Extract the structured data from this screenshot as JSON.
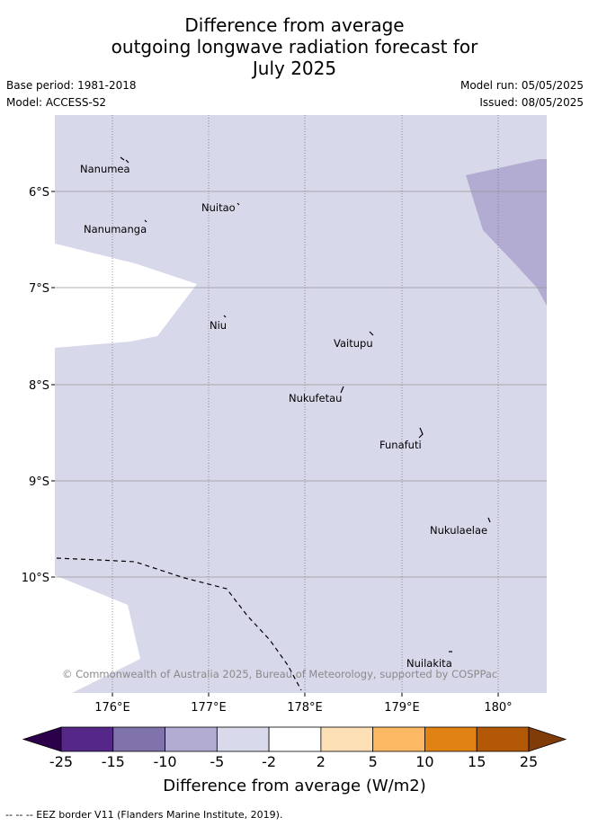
{
  "title_lines": [
    "Difference from average",
    "outgoing longwave radiation forecast for",
    "July 2025"
  ],
  "meta": {
    "base_period": "Base period: 1981-2018",
    "model": "Model: ACCESS-S2",
    "model_run": "Model run: 05/05/2025",
    "issued": "Issued: 08/05/2025"
  },
  "map": {
    "lat_labels": [
      "6°S",
      "7°S",
      "8°S",
      "9°S",
      "10°S"
    ],
    "lon_labels": [
      "176°E",
      "177°E",
      "178°E",
      "179°E",
      "180°"
    ],
    "islands": [
      "Nanumea",
      "Nuitao",
      "Nanumanga",
      "Niu",
      "Vaitupu",
      "Nukufetau",
      "Funafuti",
      "Nukulaelae",
      "Nuilakita"
    ],
    "copyright": "© Commonwealth of Australia 2025, Bureau of Meteorology, supported by COSPPac",
    "colors": {
      "background": "#d8d8eb",
      "neutral": "#ffffff",
      "minus10_to_minus5": "#b2abd2"
    }
  },
  "colorbar": {
    "ticks": [
      "-25",
      "-15",
      "-10",
      "-5",
      "-2",
      "2",
      "5",
      "10",
      "15",
      "25"
    ],
    "colors": [
      "#2d004b",
      "#542788",
      "#8073ac",
      "#b2abd2",
      "#d8daeb",
      "#ffffff",
      "#fee0b6",
      "#fdb863",
      "#e08214",
      "#b35806",
      "#7f3b08"
    ],
    "title": "Difference from average (W/m2)"
  },
  "footer": "-- -- -- EEZ border V11 (Flanders Marine Institute, 2019)."
}
